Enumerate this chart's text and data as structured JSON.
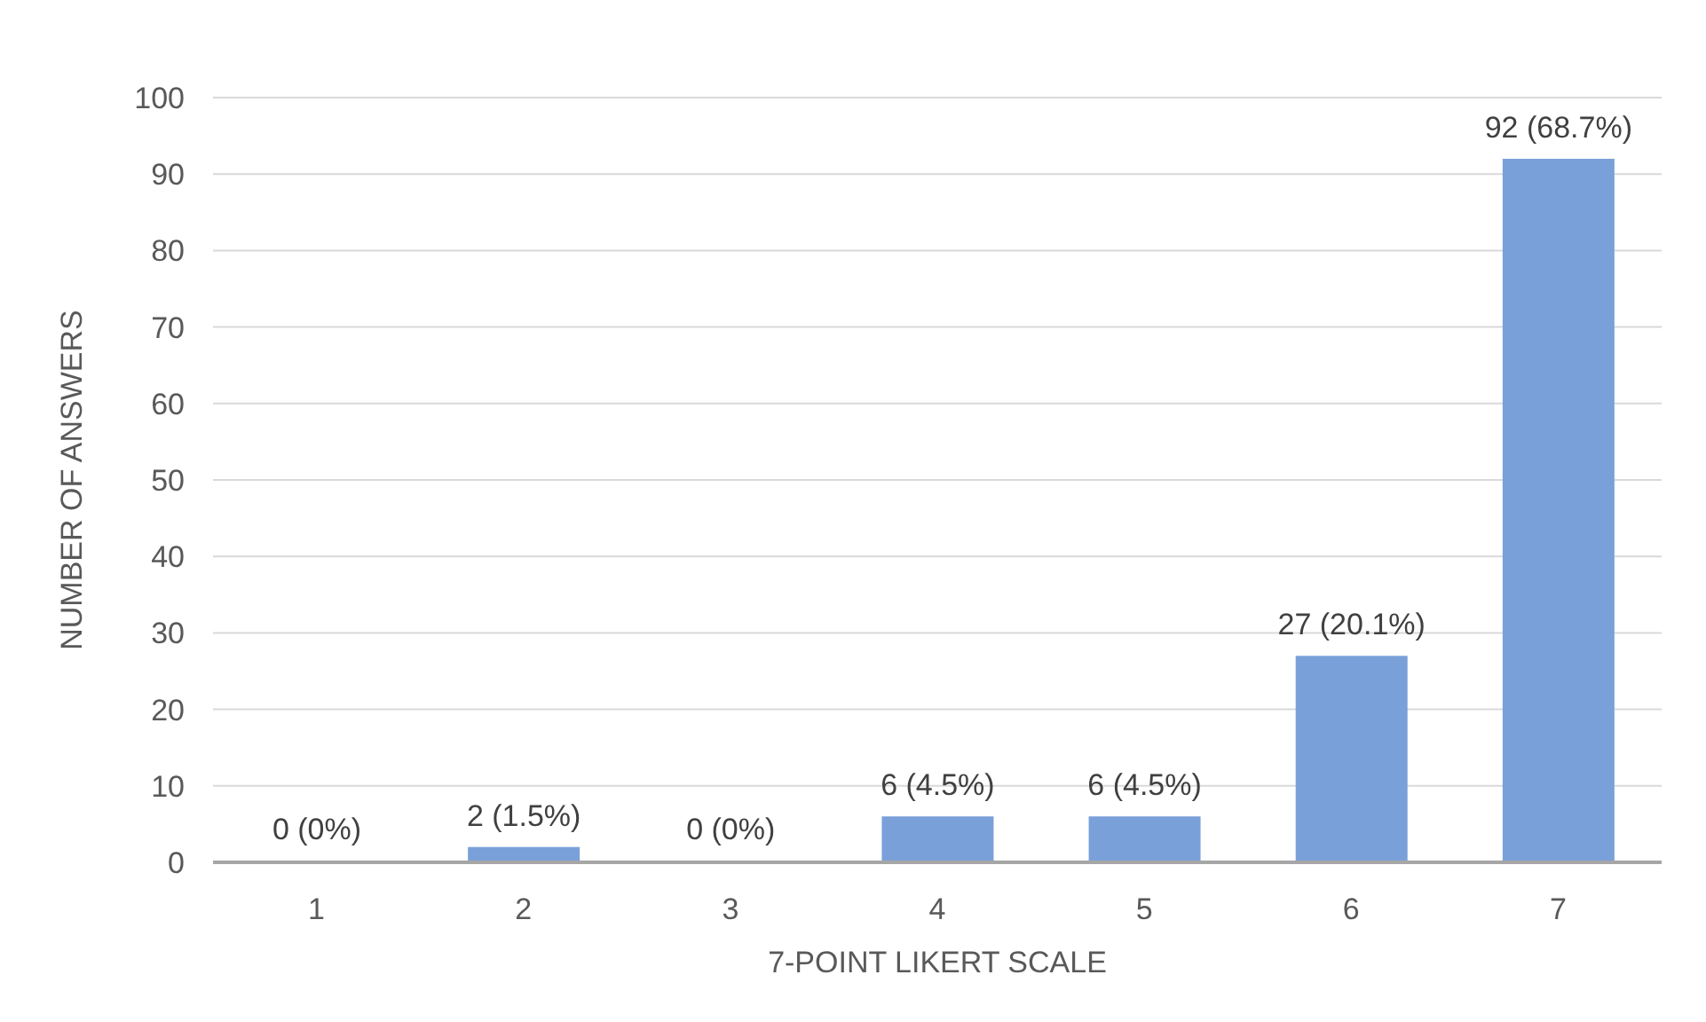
{
  "chart_data": {
    "type": "bar",
    "xlabel": "7-POINT LIKERT SCALE",
    "ylabel": "NUMBER OF ANSWERS",
    "categories": [
      "1",
      "2",
      "3",
      "4",
      "5",
      "6",
      "7"
    ],
    "values": [
      0,
      2,
      0,
      6,
      6,
      27,
      92
    ],
    "value_labels": [
      "0 (0%)",
      "2 (1.5%)",
      "0 (0%)",
      "6 (4.5%)",
      "6 (4.5%)",
      "27 (20.1%)",
      "92 (68.7%)"
    ],
    "color": "#7aa0d9",
    "ylim": [
      0,
      100
    ],
    "yticks": [
      0,
      10,
      20,
      30,
      40,
      50,
      60,
      70,
      80,
      90,
      100
    ],
    "grid": "y"
  }
}
